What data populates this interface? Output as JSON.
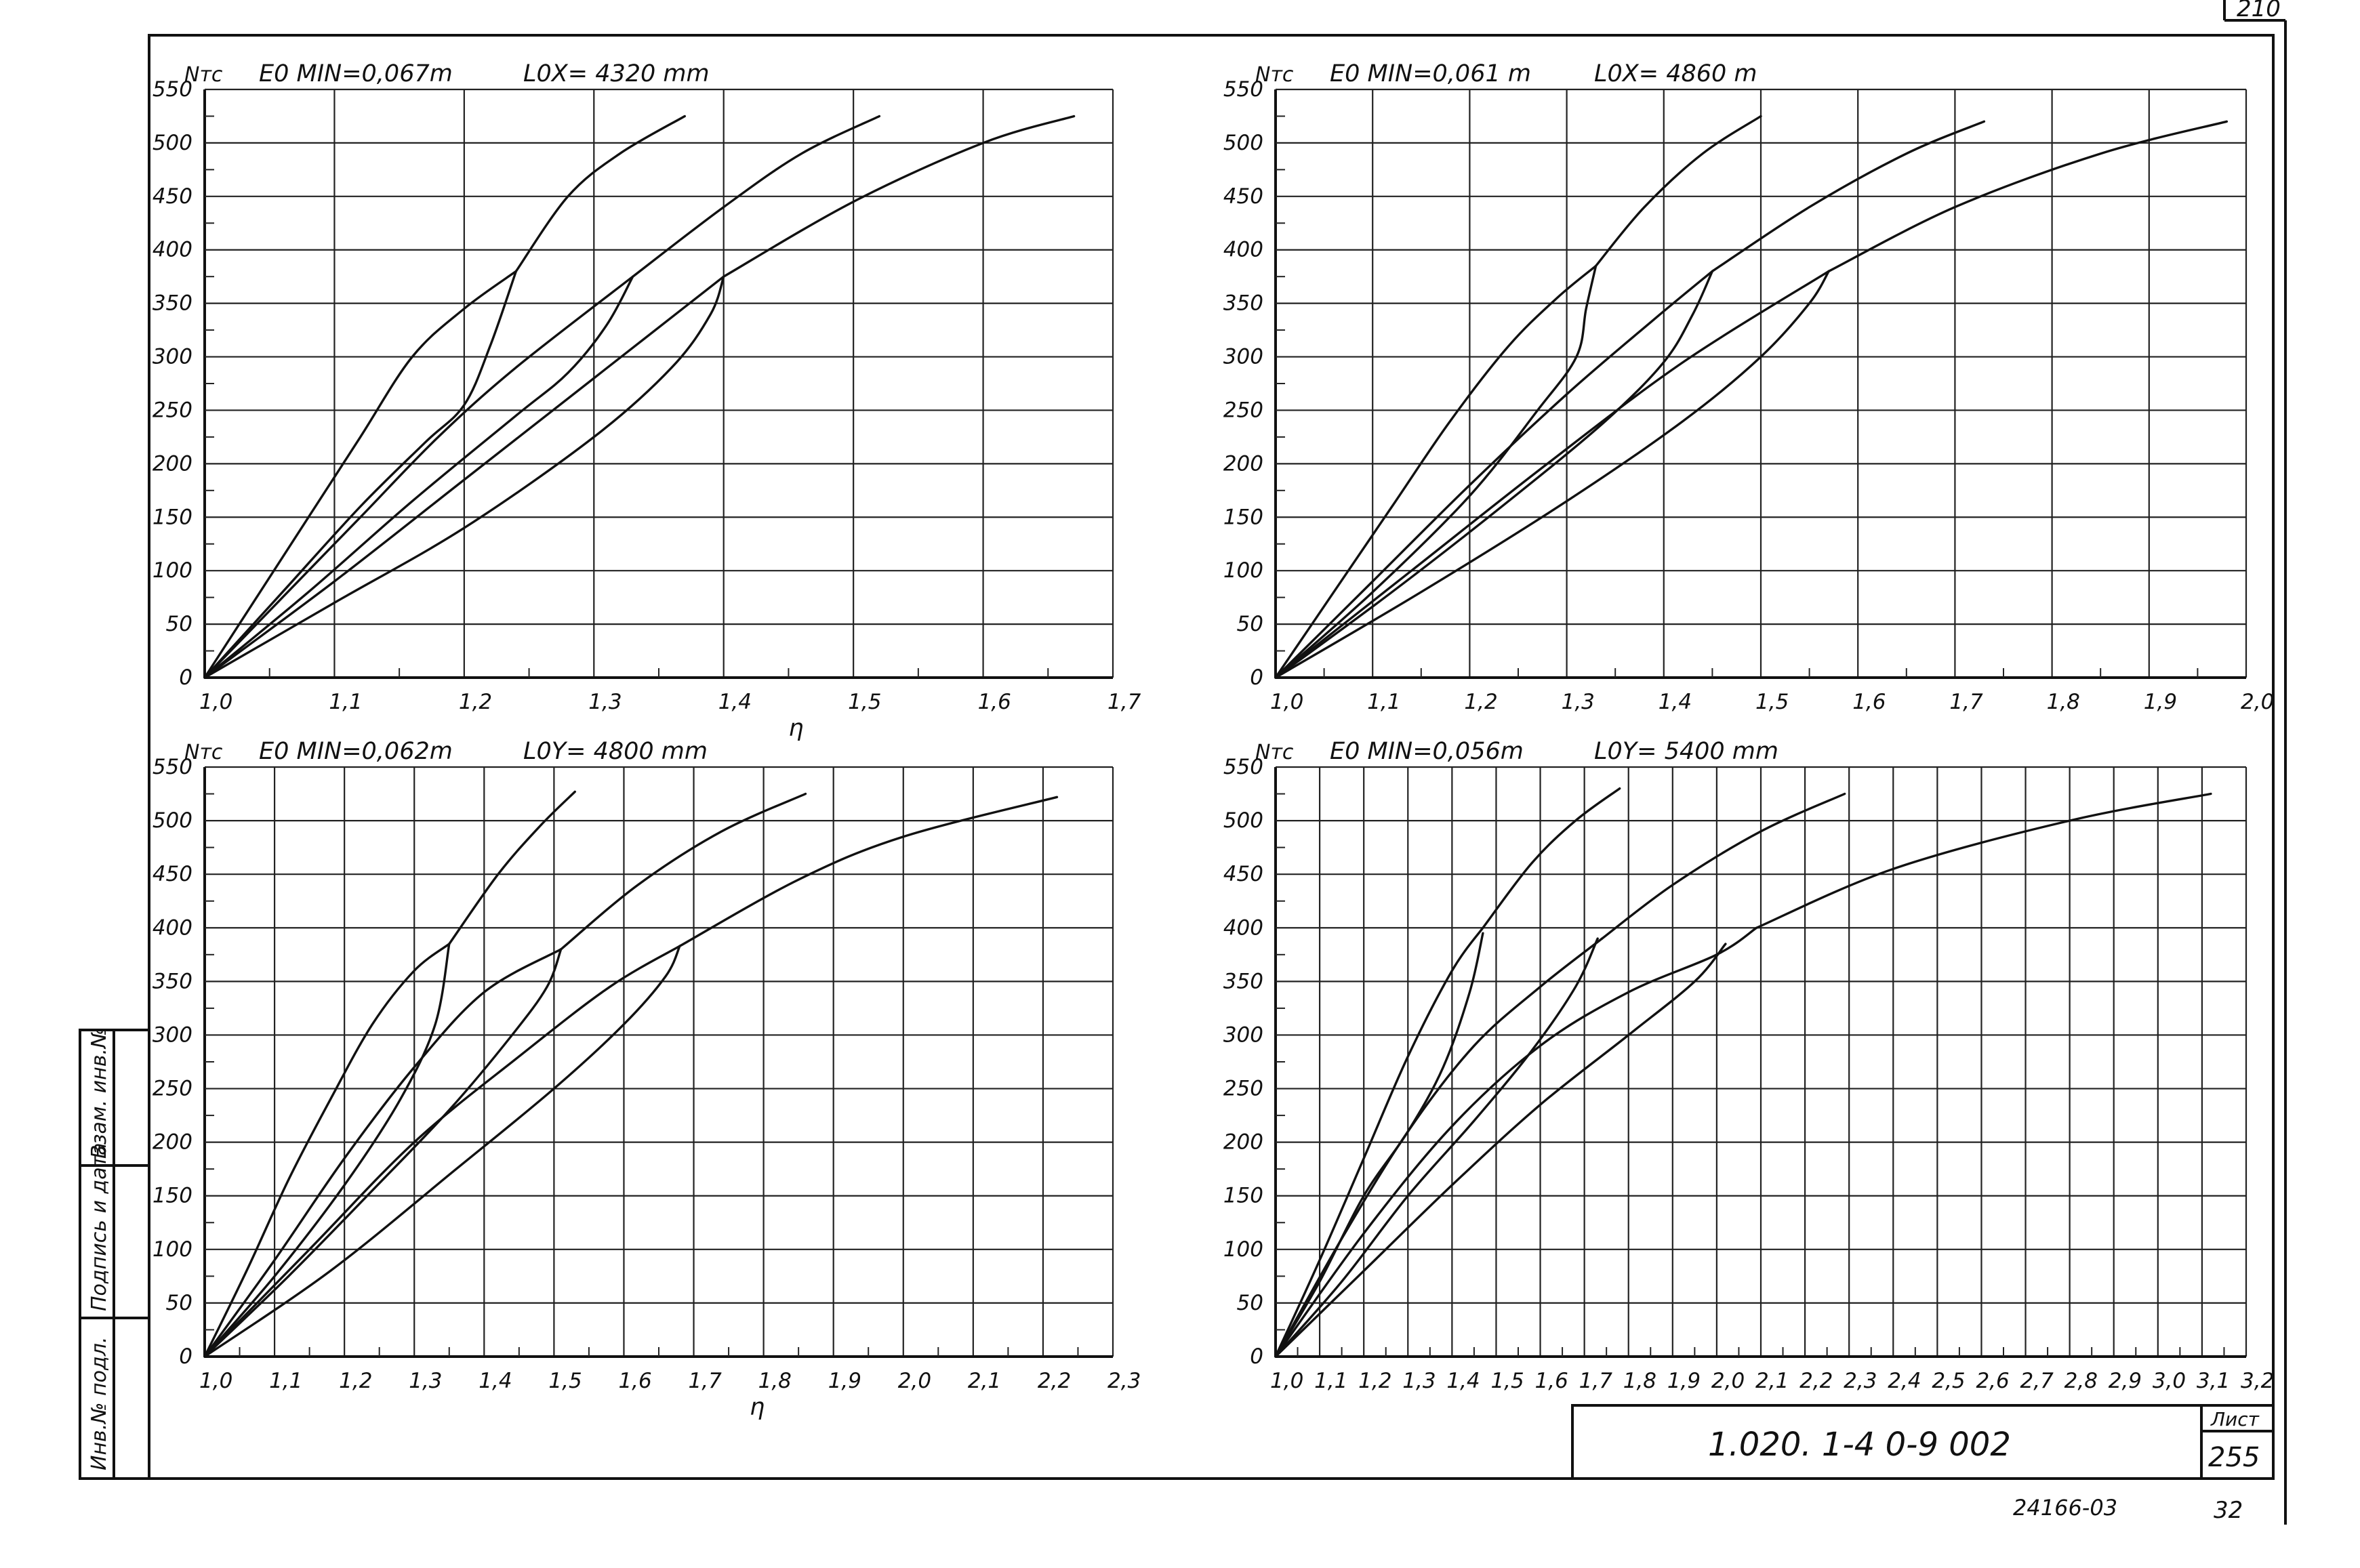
{
  "sheet": {
    "corner_label": "210",
    "side_labels": [
      "Инв.№ подл.",
      "Подпись и дата",
      "Взам. инв.№"
    ],
    "stamp": {
      "code": "1.020. 1-4 0-9 002",
      "sheet_word": "Лист",
      "sheet_no": "255"
    },
    "footer_code": "24166-03",
    "footer_page": "32"
  },
  "chart_data": [
    {
      "type": "line",
      "ylabel": "Nтс",
      "header_emin": "E0 MIN=0,067m",
      "header_l0": "L0X= 4320 mm",
      "xlabel": "η",
      "xlim": [
        1.0,
        1.7
      ],
      "ylim": [
        0,
        550
      ],
      "xticks": [
        "1,0",
        "1,1",
        "1,2",
        "1,3",
        "1,4",
        "1,5",
        "1,6",
        "1,7"
      ],
      "yticks": [
        "0",
        "50",
        "100",
        "150",
        "200",
        "250",
        "300",
        "350",
        "400",
        "450",
        "500",
        "550"
      ],
      "grid": true,
      "series": [
        {
          "x": [
            1.0,
            1.04,
            1.08,
            1.12,
            1.16,
            1.2,
            1.24
          ],
          "y": [
            0,
            75,
            150,
            225,
            300,
            345,
            380
          ]
        },
        {
          "x": [
            1.24,
            1.28,
            1.32,
            1.37
          ],
          "y": [
            380,
            450,
            490,
            525
          ]
        },
        {
          "x": [
            1.0,
            1.06,
            1.12,
            1.18,
            1.24,
            1.33
          ],
          "y": [
            0,
            75,
            150,
            225,
            290,
            375
          ]
        },
        {
          "x": [
            1.33,
            1.4,
            1.46,
            1.52
          ],
          "y": [
            375,
            440,
            490,
            525
          ]
        },
        {
          "x": [
            1.0,
            1.1,
            1.2,
            1.3,
            1.4
          ],
          "y": [
            0,
            90,
            185,
            280,
            375
          ]
        },
        {
          "x": [
            1.4,
            1.5,
            1.6,
            1.67
          ],
          "y": [
            375,
            445,
            500,
            525
          ]
        },
        {
          "x": [
            1.0,
            1.06,
            1.12,
            1.17,
            1.2,
            1.22,
            1.24
          ],
          "y": [
            0,
            80,
            160,
            220,
            255,
            310,
            380
          ]
        },
        {
          "x": [
            1.0,
            1.08,
            1.16,
            1.24,
            1.28,
            1.31,
            1.33
          ],
          "y": [
            0,
            80,
            165,
            245,
            285,
            330,
            375
          ]
        },
        {
          "x": [
            1.0,
            1.1,
            1.2,
            1.3,
            1.36,
            1.39,
            1.4
          ],
          "y": [
            0,
            70,
            140,
            225,
            290,
            340,
            375
          ]
        }
      ]
    },
    {
      "type": "line",
      "ylabel": "Nтс",
      "header_emin": "E0 MIN=0,061 m",
      "header_l0": "L0X= 4860 m",
      "xlabel": "",
      "xlim": [
        1.0,
        2.0
      ],
      "ylim": [
        0,
        550
      ],
      "xticks": [
        "1,0",
        "1,1",
        "1,2",
        "1,3",
        "1,4",
        "1,5",
        "1,6",
        "1,7",
        "1,8",
        "1,9",
        "2,0"
      ],
      "yticks": [
        "0",
        "50",
        "100",
        "150",
        "200",
        "250",
        "300",
        "350",
        "400",
        "450",
        "500",
        "550"
      ],
      "grid": true,
      "series": [
        {
          "x": [
            1.0,
            1.06,
            1.12,
            1.18,
            1.24,
            1.29,
            1.33
          ],
          "y": [
            0,
            80,
            160,
            240,
            310,
            355,
            385
          ]
        },
        {
          "x": [
            1.33,
            1.38,
            1.44,
            1.5
          ],
          "y": [
            385,
            440,
            490,
            525
          ]
        },
        {
          "x": [
            1.0,
            1.1,
            1.2,
            1.3,
            1.39,
            1.45
          ],
          "y": [
            0,
            90,
            180,
            265,
            335,
            380
          ]
        },
        {
          "x": [
            1.45,
            1.55,
            1.65,
            1.73
          ],
          "y": [
            380,
            440,
            490,
            520
          ]
        },
        {
          "x": [
            1.0,
            1.14,
            1.28,
            1.42,
            1.57
          ],
          "y": [
            0,
            100,
            200,
            295,
            380
          ]
        },
        {
          "x": [
            1.57,
            1.7,
            1.85,
            1.98
          ],
          "y": [
            380,
            440,
            490,
            520
          ]
        },
        {
          "x": [
            1.0,
            1.1,
            1.2,
            1.27,
            1.31,
            1.32,
            1.33
          ],
          "y": [
            0,
            80,
            170,
            250,
            300,
            345,
            385
          ]
        },
        {
          "x": [
            1.0,
            1.12,
            1.24,
            1.34,
            1.4,
            1.43,
            1.45
          ],
          "y": [
            0,
            80,
            165,
            240,
            295,
            340,
            380
          ]
        },
        {
          "x": [
            1.0,
            1.15,
            1.3,
            1.42,
            1.5,
            1.55,
            1.57
          ],
          "y": [
            0,
            80,
            165,
            240,
            300,
            350,
            380
          ]
        }
      ]
    },
    {
      "type": "line",
      "ylabel": "Nтс",
      "header_emin": "E0 MIN=0,062m",
      "header_l0": "L0Y= 4800 mm",
      "xlabel": "η",
      "xlim": [
        1.0,
        2.3
      ],
      "ylim": [
        0,
        550
      ],
      "xticks": [
        "1,0",
        "1,1",
        "1,2",
        "1,3",
        "1,4",
        "1,5",
        "1,6",
        "1,7",
        "1,8",
        "1,9",
        "2,0",
        "2,1",
        "2,2",
        "2,3"
      ],
      "yticks": [
        "0",
        "50",
        "100",
        "150",
        "200",
        "250",
        "300",
        "350",
        "400",
        "450",
        "500",
        "550"
      ],
      "grid": true,
      "series": [
        {
          "x": [
            1.0,
            1.06,
            1.12,
            1.18,
            1.24,
            1.3,
            1.35
          ],
          "y": [
            0,
            80,
            165,
            240,
            310,
            360,
            385
          ]
        },
        {
          "x": [
            1.35,
            1.42,
            1.48,
            1.53
          ],
          "y": [
            385,
            450,
            495,
            527
          ]
        },
        {
          "x": [
            1.0,
            1.1,
            1.2,
            1.3,
            1.4,
            1.51
          ],
          "y": [
            0,
            90,
            185,
            270,
            340,
            380
          ]
        },
        {
          "x": [
            1.51,
            1.62,
            1.74,
            1.86
          ],
          "y": [
            380,
            440,
            490,
            525
          ]
        },
        {
          "x": [
            1.0,
            1.15,
            1.3,
            1.45,
            1.58,
            1.68
          ],
          "y": [
            0,
            100,
            200,
            280,
            345,
            383
          ]
        },
        {
          "x": [
            1.68,
            1.85,
            2.0,
            2.22
          ],
          "y": [
            383,
            445,
            485,
            522
          ]
        },
        {
          "x": [
            1.0,
            1.1,
            1.2,
            1.28,
            1.33,
            1.35
          ],
          "y": [
            0,
            75,
            160,
            240,
            310,
            385
          ]
        },
        {
          "x": [
            1.0,
            1.12,
            1.24,
            1.35,
            1.44,
            1.49,
            1.51
          ],
          "y": [
            0,
            75,
            155,
            230,
            300,
            345,
            380
          ]
        },
        {
          "x": [
            1.0,
            1.18,
            1.36,
            1.5,
            1.6,
            1.66,
            1.68
          ],
          "y": [
            0,
            80,
            175,
            250,
            310,
            355,
            383
          ]
        }
      ]
    },
    {
      "type": "line",
      "ylabel": "Nтс",
      "header_emin": "E0 MIN=0,056m",
      "header_l0": "L0Y= 5400 mm",
      "xlabel": "",
      "xlim": [
        1.0,
        3.2
      ],
      "ylim": [
        0,
        550
      ],
      "xticks": [
        "1,0",
        "1,1",
        "1,2",
        "1,3",
        "1,4",
        "1,5",
        "1,6",
        "1,7",
        "1,8",
        "1,9",
        "2,0",
        "2,1",
        "2,2",
        "2,3",
        "2,4",
        "2,5",
        "2,6",
        "2,7",
        "2,8",
        "2,9",
        "3,0",
        "3,1",
        "3,2"
      ],
      "yticks": [
        "0",
        "50",
        "100",
        "150",
        "200",
        "250",
        "300",
        "350",
        "400",
        "450",
        "500",
        "550"
      ],
      "grid": true,
      "series": [
        {
          "x": [
            1.0,
            1.1,
            1.2,
            1.3,
            1.4,
            1.47
          ],
          "y": [
            0,
            90,
            185,
            280,
            360,
            400
          ]
        },
        {
          "x": [
            1.47,
            1.58,
            1.68,
            1.78
          ],
          "y": [
            400,
            460,
            500,
            530
          ]
        },
        {
          "x": [
            1.0,
            1.15,
            1.3,
            1.45,
            1.6,
            1.74
          ],
          "y": [
            0,
            110,
            210,
            290,
            345,
            390
          ]
        },
        {
          "x": [
            1.74,
            1.9,
            2.1,
            2.29
          ],
          "y": [
            390,
            440,
            490,
            525
          ]
        },
        {
          "x": [
            1.0,
            1.2,
            1.4,
            1.6,
            1.8,
            2.0,
            2.09
          ],
          "y": [
            0,
            115,
            215,
            290,
            340,
            375,
            400
          ]
        },
        {
          "x": [
            2.09,
            2.4,
            2.8,
            3.12
          ],
          "y": [
            400,
            455,
            500,
            525
          ]
        },
        {
          "x": [
            1.0,
            1.1,
            1.2,
            1.3,
            1.38,
            1.44,
            1.47
          ],
          "y": [
            0,
            70,
            150,
            210,
            270,
            340,
            395
          ]
        },
        {
          "x": [
            1.0,
            1.15,
            1.3,
            1.45,
            1.58,
            1.68,
            1.73
          ],
          "y": [
            0,
            70,
            150,
            220,
            285,
            345,
            390
          ]
        },
        {
          "x": [
            1.0,
            1.2,
            1.4,
            1.6,
            1.8,
            1.95,
            2.02
          ],
          "y": [
            0,
            80,
            160,
            235,
            300,
            350,
            385
          ]
        }
      ]
    }
  ]
}
